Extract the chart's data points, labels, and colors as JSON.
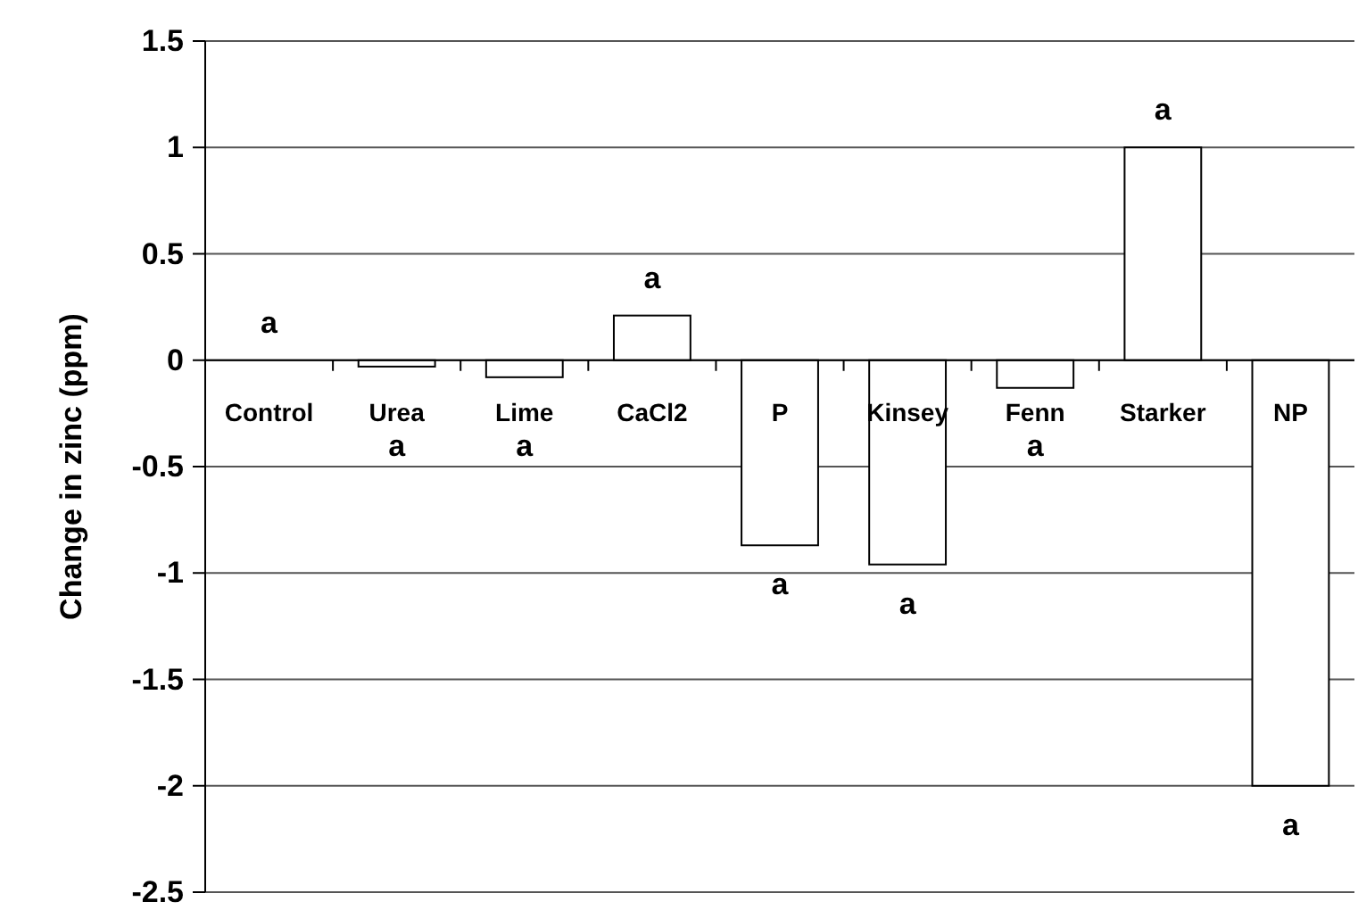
{
  "chart_data": {
    "type": "bar",
    "ylabel": "Change in zinc (ppm)",
    "categories": [
      "Control",
      "Urea",
      "Lime",
      "CaCl2",
      "P",
      "Kinsey",
      "Fenn",
      "Starker",
      "NP"
    ],
    "values": [
      0,
      -0.03,
      -0.08,
      0.21,
      -0.87,
      -0.96,
      -0.13,
      1.0,
      -2.0
    ],
    "color": "#ffffff",
    "ylim": [
      -2.5,
      1.5
    ],
    "yticks": [
      -2.5,
      -2,
      -1.5,
      -1,
      -0.5,
      0,
      0.5,
      1,
      1.5
    ],
    "grid": "y",
    "annotations": [
      "a",
      "a",
      "a",
      "a",
      "a",
      "a",
      "a",
      "a",
      "a"
    ]
  }
}
